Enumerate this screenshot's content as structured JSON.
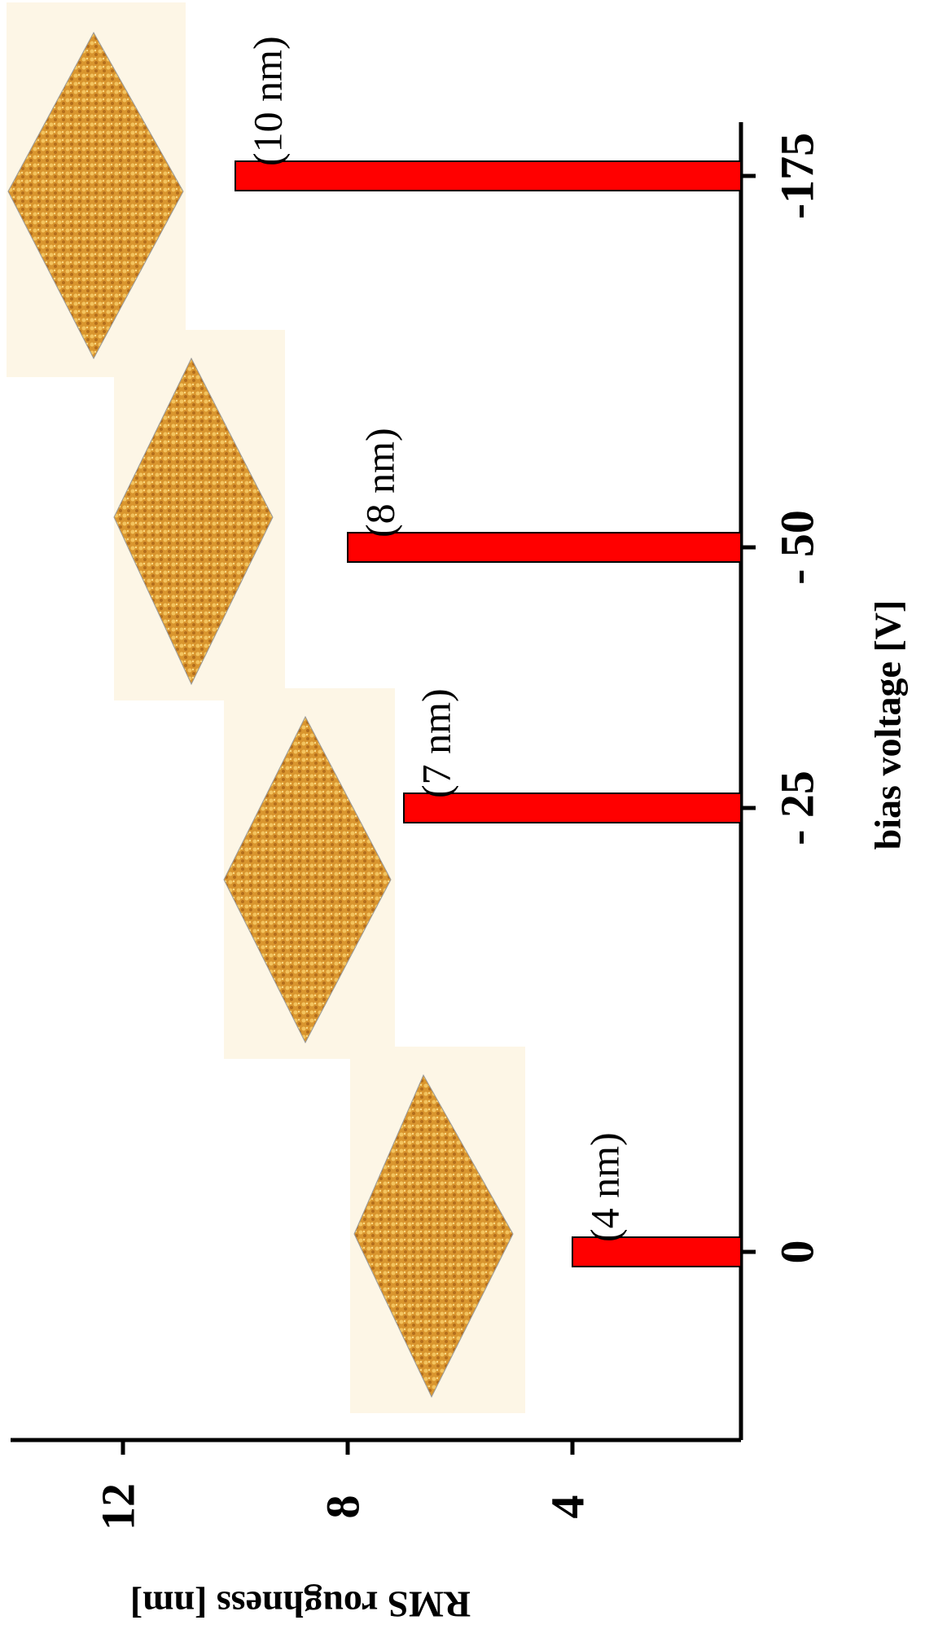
{
  "chart_data": {
    "type": "bar",
    "orientation": "horizontal",
    "x_label": "bias voltage [V]",
    "y_label": "RMS roughness [nm]",
    "categories": [
      "0",
      "- 25",
      "- 50",
      "-175"
    ],
    "values": [
      4,
      7,
      8,
      10
    ],
    "value_labels": [
      "(4 nm)",
      "(7 nm)",
      "(8 nm)",
      "(10 nm)"
    ],
    "color": "#ff0000",
    "ylim": [
      1,
      14
    ],
    "yticks": [
      4,
      8,
      12
    ]
  }
}
